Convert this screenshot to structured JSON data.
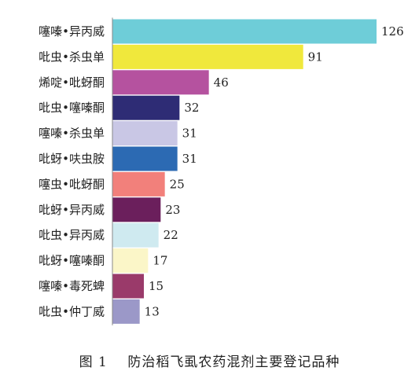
{
  "caption": "图 1    防治稻飞虱农药混剂主要登记品种",
  "chart_data": {
    "type": "bar",
    "orientation": "horizontal",
    "title": "",
    "xlabel": "",
    "ylabel": "",
    "xlim": [
      0,
      126
    ],
    "grid": false,
    "categories": [
      "噻嗪•异丙威",
      "吡虫•杀虫单",
      "烯啶•吡蚜酮",
      "吡虫•噻嗪酮",
      "噻嗪•杀虫单",
      "吡蚜•呋虫胺",
      "噻虫•吡蚜酮",
      "吡蚜•异丙威",
      "吡虫•异丙威",
      "吡蚜•噻嗪酮",
      "噻嗪•毒死蜱",
      "吡虫•仲丁威"
    ],
    "values": [
      126,
      91,
      46,
      32,
      31,
      31,
      25,
      23,
      22,
      17,
      15,
      13
    ],
    "colors": [
      "#6ecdd8",
      "#f0e83c",
      "#b5529f",
      "#2e2c75",
      "#c9c7e5",
      "#2c6ab3",
      "#f2807b",
      "#6b1f5c",
      "#cfeaf0",
      "#fbf6c8",
      "#9a3a6a",
      "#9b98c8"
    ]
  }
}
